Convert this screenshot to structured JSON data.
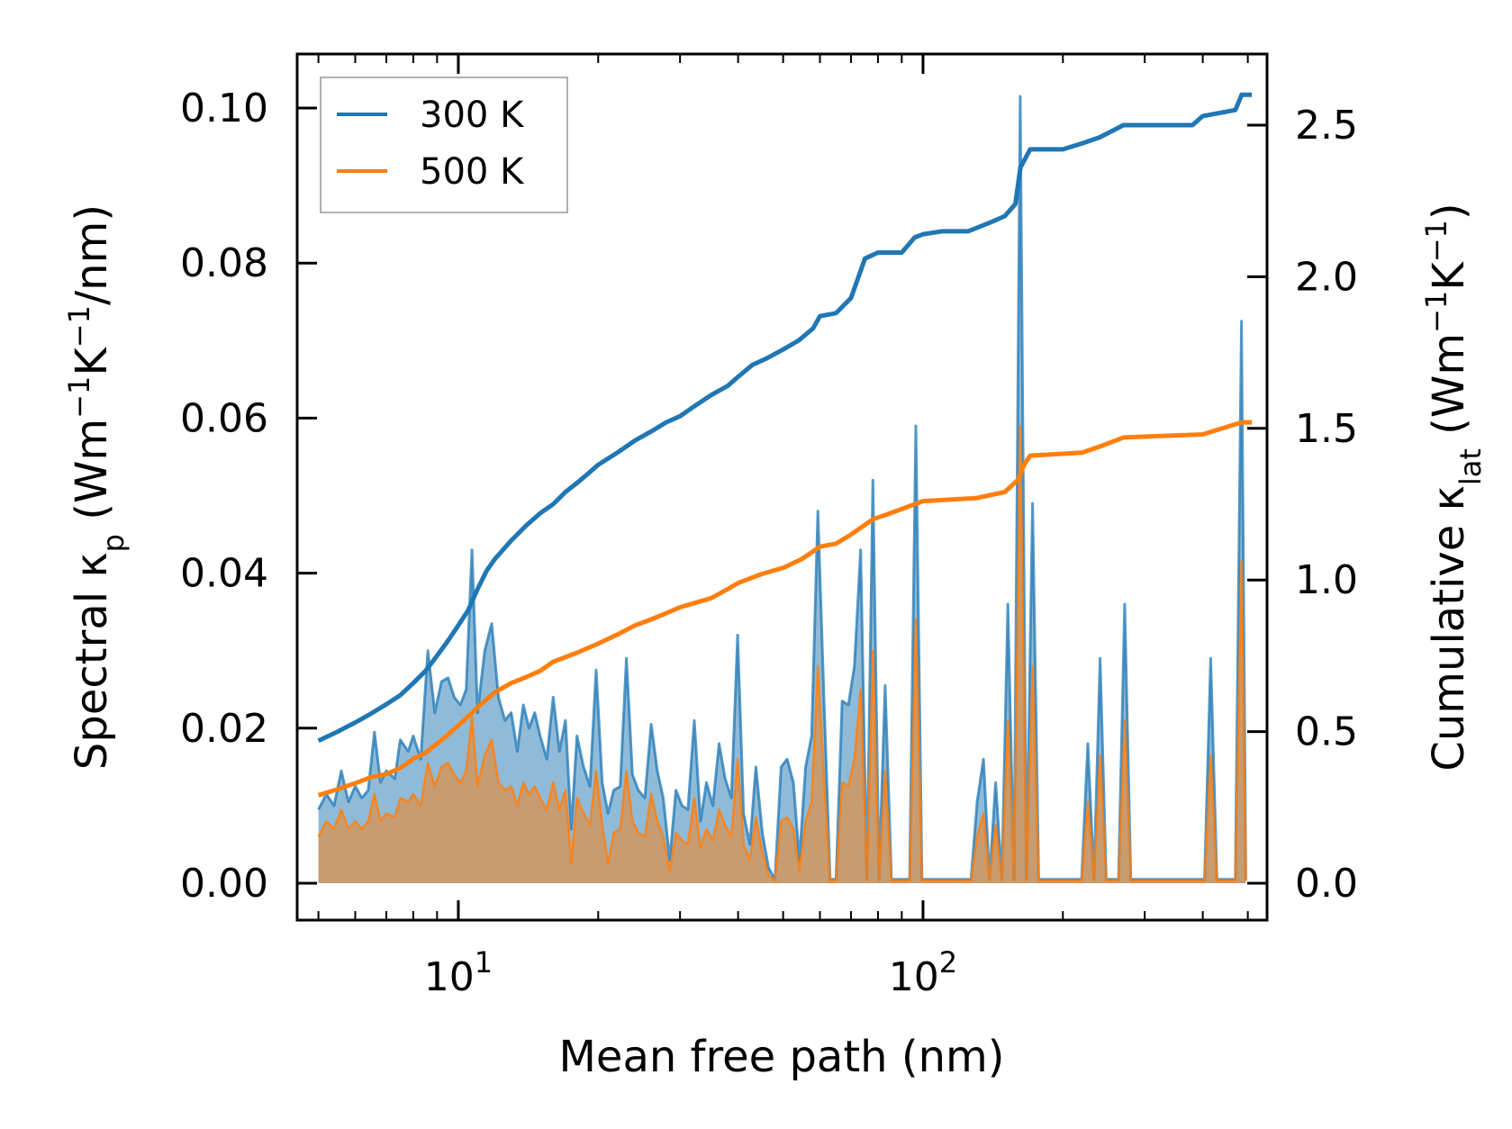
{
  "chart_data": {
    "type": "line",
    "xlabel": "Mean free path (nm)",
    "ylabel_left": {
      "main": "Spectral κ",
      "sub": "p",
      "unit_open": " (Wm",
      "sup1": "−1",
      "mid": "K",
      "sup2": "−1",
      "unit_close": "/nm)"
    },
    "ylabel_right": {
      "main": "Cumulative κ",
      "sub": "lat",
      "unit_open": " (Wm",
      "sup1": "−1",
      "mid": "K",
      "sup2": "−1",
      "unit_close": ")"
    },
    "x_scale": "log",
    "xlim": [
      4.5,
      550
    ],
    "ylim_left": [
      0,
      0.105
    ],
    "ylim_right": [
      0,
      2.7
    ],
    "x_ticks": [
      {
        "value": 10,
        "base": "10",
        "exp": "1"
      },
      {
        "value": 100,
        "base": "10",
        "exp": "2"
      }
    ],
    "y_ticks_left": [
      "0.00",
      "0.02",
      "0.04",
      "0.06",
      "0.08",
      "0.10"
    ],
    "y_ticks_right": [
      "0.0",
      "0.5",
      "1.0",
      "1.5",
      "2.0",
      "2.5"
    ],
    "legend": {
      "position": "top-left",
      "entries": [
        "300 K",
        "500 K"
      ]
    },
    "colors": {
      "300 K": "#1f77b4",
      "500 K": "#ff7f0e",
      "fill_300": "#1f77b4",
      "fill_500": "#d9924e"
    },
    "spectral_300K": [
      [
        5.0,
        0.0095
      ],
      [
        5.2,
        0.0115
      ],
      [
        5.4,
        0.01
      ],
      [
        5.6,
        0.0145
      ],
      [
        5.8,
        0.0105
      ],
      [
        6.0,
        0.0125
      ],
      [
        6.2,
        0.011
      ],
      [
        6.4,
        0.012
      ],
      [
        6.6,
        0.0195
      ],
      [
        6.8,
        0.013
      ],
      [
        7.0,
        0.0145
      ],
      [
        7.3,
        0.0135
      ],
      [
        7.5,
        0.0185
      ],
      [
        7.8,
        0.017
      ],
      [
        8.0,
        0.019
      ],
      [
        8.3,
        0.016
      ],
      [
        8.6,
        0.03
      ],
      [
        8.9,
        0.022
      ],
      [
        9.2,
        0.026
      ],
      [
        9.5,
        0.0265
      ],
      [
        9.8,
        0.024
      ],
      [
        10.1,
        0.023
      ],
      [
        10.4,
        0.025
      ],
      [
        10.7,
        0.043
      ],
      [
        11.0,
        0.022
      ],
      [
        11.4,
        0.03
      ],
      [
        11.8,
        0.0335
      ],
      [
        12.2,
        0.024
      ],
      [
        12.6,
        0.021
      ],
      [
        13.0,
        0.022
      ],
      [
        13.4,
        0.017
      ],
      [
        13.8,
        0.023
      ],
      [
        14.2,
        0.02
      ],
      [
        14.6,
        0.022
      ],
      [
        15.0,
        0.019
      ],
      [
        15.5,
        0.016
      ],
      [
        16.0,
        0.024
      ],
      [
        16.5,
        0.017
      ],
      [
        17.0,
        0.021
      ],
      [
        17.5,
        0.007
      ],
      [
        18.0,
        0.019
      ],
      [
        18.6,
        0.015
      ],
      [
        19.2,
        0.0125
      ],
      [
        19.8,
        0.0275
      ],
      [
        20.4,
        0.013
      ],
      [
        21.0,
        0.009
      ],
      [
        21.6,
        0.012
      ],
      [
        22.3,
        0.0125
      ],
      [
        23.0,
        0.029
      ],
      [
        23.7,
        0.014
      ],
      [
        24.4,
        0.012
      ],
      [
        25.2,
        0.011
      ],
      [
        26.0,
        0.0205
      ],
      [
        26.8,
        0.0145
      ],
      [
        27.6,
        0.011
      ],
      [
        28.5,
        0.003
      ],
      [
        29.4,
        0.012
      ],
      [
        30.3,
        0.01
      ],
      [
        31.2,
        0.0095
      ],
      [
        32.2,
        0.021
      ],
      [
        33.2,
        0.008
      ],
      [
        34.2,
        0.013
      ],
      [
        35.3,
        0.01
      ],
      [
        36.4,
        0.018
      ],
      [
        37.5,
        0.0135
      ],
      [
        38.7,
        0.011
      ],
      [
        39.9,
        0.032
      ],
      [
        41.1,
        0.009
      ],
      [
        42.4,
        0.005
      ],
      [
        43.7,
        0.015
      ],
      [
        45.1,
        0.0065
      ],
      [
        46.5,
        0.002
      ],
      [
        48.0,
        0.0005
      ],
      [
        49.5,
        0.015
      ],
      [
        51.0,
        0.016
      ],
      [
        52.6,
        0.013
      ],
      [
        54.2,
        0.003
      ],
      [
        55.9,
        0.015
      ],
      [
        57.6,
        0.019
      ],
      [
        59.4,
        0.048
      ],
      [
        61.2,
        0.024
      ],
      [
        63.1,
        0.0005
      ],
      [
        65.0,
        0.0005
      ],
      [
        67.0,
        0.0235
      ],
      [
        69.1,
        0.023
      ],
      [
        71.2,
        0.028
      ],
      [
        73.4,
        0.043
      ],
      [
        75.7,
        0.0005
      ],
      [
        78.0,
        0.052
      ],
      [
        80.4,
        0.0005
      ],
      [
        82.9,
        0.0255
      ],
      [
        85.5,
        0.0005
      ],
      [
        88.1,
        0.0005
      ],
      [
        90.8,
        0.0005
      ],
      [
        93.6,
        0.0005
      ],
      [
        96.5,
        0.059
      ],
      [
        99.5,
        0.0005
      ],
      [
        102.6,
        0.0005
      ],
      [
        105.7,
        0.0005
      ],
      [
        109.0,
        0.0005
      ],
      [
        112.4,
        0.0005
      ],
      [
        115.8,
        0.0005
      ],
      [
        119.4,
        0.0005
      ],
      [
        123.1,
        0.0005
      ],
      [
        126.9,
        0.0005
      ],
      [
        130.8,
        0.0105
      ],
      [
        134.9,
        0.016
      ],
      [
        139.0,
        0.0005
      ],
      [
        143.3,
        0.013
      ],
      [
        147.8,
        0.0005
      ],
      [
        152.3,
        0.036
      ],
      [
        157.0,
        0.0005
      ],
      [
        161.9,
        0.1015
      ],
      [
        166.9,
        0.0005
      ],
      [
        172.1,
        0.049
      ],
      [
        177.4,
        0.0005
      ],
      [
        182.9,
        0.0005
      ],
      [
        188.5,
        0.0005
      ],
      [
        194.4,
        0.0005
      ],
      [
        200.3,
        0.0005
      ],
      [
        206.5,
        0.0005
      ],
      [
        212.9,
        0.0005
      ],
      [
        219.5,
        0.0005
      ],
      [
        226.3,
        0.018
      ],
      [
        233.3,
        0.0005
      ],
      [
        240.5,
        0.029
      ],
      [
        247.9,
        0.0005
      ],
      [
        255.6,
        0.0005
      ],
      [
        263.5,
        0.0005
      ],
      [
        271.6,
        0.036
      ],
      [
        280.0,
        0.0005
      ],
      [
        288.7,
        0.0005
      ],
      [
        297.6,
        0.0005
      ],
      [
        306.8,
        0.0005
      ],
      [
        316.3,
        0.0005
      ],
      [
        326.1,
        0.0005
      ],
      [
        336.2,
        0.0005
      ],
      [
        346.6,
        0.0005
      ],
      [
        357.3,
        0.0005
      ],
      [
        368.3,
        0.0005
      ],
      [
        379.7,
        0.0005
      ],
      [
        391.4,
        0.0005
      ],
      [
        403.5,
        0.0005
      ],
      [
        416.0,
        0.029
      ],
      [
        428.9,
        0.0005
      ],
      [
        442.2,
        0.0005
      ],
      [
        455.9,
        0.0005
      ],
      [
        470.0,
        0.0005
      ],
      [
        484.5,
        0.0725
      ],
      [
        495.0,
        0.0005
      ]
    ],
    "spectral_500K": [
      [
        5.0,
        0.006
      ],
      [
        5.2,
        0.008
      ],
      [
        5.4,
        0.007
      ],
      [
        5.6,
        0.0095
      ],
      [
        5.8,
        0.007
      ],
      [
        6.0,
        0.008
      ],
      [
        6.2,
        0.007
      ],
      [
        6.4,
        0.008
      ],
      [
        6.6,
        0.0115
      ],
      [
        6.8,
        0.008
      ],
      [
        7.0,
        0.009
      ],
      [
        7.3,
        0.0085
      ],
      [
        7.5,
        0.011
      ],
      [
        7.8,
        0.0105
      ],
      [
        8.0,
        0.0115
      ],
      [
        8.3,
        0.01
      ],
      [
        8.6,
        0.0155
      ],
      [
        8.9,
        0.0125
      ],
      [
        9.2,
        0.015
      ],
      [
        9.5,
        0.0155
      ],
      [
        9.8,
        0.014
      ],
      [
        10.1,
        0.013
      ],
      [
        10.4,
        0.0145
      ],
      [
        10.7,
        0.0215
      ],
      [
        11.0,
        0.0125
      ],
      [
        11.4,
        0.0165
      ],
      [
        11.8,
        0.0185
      ],
      [
        12.2,
        0.013
      ],
      [
        12.6,
        0.012
      ],
      [
        13.0,
        0.0125
      ],
      [
        13.4,
        0.01
      ],
      [
        13.8,
        0.013
      ],
      [
        14.2,
        0.0115
      ],
      [
        14.6,
        0.0125
      ],
      [
        15.0,
        0.011
      ],
      [
        15.5,
        0.0095
      ],
      [
        16.0,
        0.013
      ],
      [
        16.5,
        0.0095
      ],
      [
        17.0,
        0.012
      ],
      [
        17.5,
        0.0025
      ],
      [
        18.0,
        0.011
      ],
      [
        18.6,
        0.009
      ],
      [
        19.2,
        0.0075
      ],
      [
        19.8,
        0.0145
      ],
      [
        20.4,
        0.0075
      ],
      [
        21.0,
        0.0025
      ],
      [
        21.6,
        0.0065
      ],
      [
        22.3,
        0.007
      ],
      [
        23.0,
        0.0145
      ],
      [
        23.7,
        0.008
      ],
      [
        24.4,
        0.0065
      ],
      [
        25.2,
        0.006
      ],
      [
        26.0,
        0.0115
      ],
      [
        26.8,
        0.008
      ],
      [
        27.6,
        0.006
      ],
      [
        28.5,
        0.0015
      ],
      [
        29.4,
        0.0065
      ],
      [
        30.3,
        0.0055
      ],
      [
        31.2,
        0.005
      ],
      [
        32.2,
        0.011
      ],
      [
        33.2,
        0.0045
      ],
      [
        34.2,
        0.007
      ],
      [
        35.3,
        0.0055
      ],
      [
        36.4,
        0.0095
      ],
      [
        37.5,
        0.0075
      ],
      [
        38.7,
        0.006
      ],
      [
        39.9,
        0.016
      ],
      [
        41.1,
        0.005
      ],
      [
        42.4,
        0.003
      ],
      [
        43.7,
        0.0085
      ],
      [
        45.1,
        0.004
      ],
      [
        46.5,
        0.001
      ],
      [
        48.0,
        0.0003
      ],
      [
        49.5,
        0.008
      ],
      [
        51.0,
        0.0085
      ],
      [
        52.6,
        0.007
      ],
      [
        54.2,
        0.0015
      ],
      [
        55.9,
        0.008
      ],
      [
        57.6,
        0.0105
      ],
      [
        59.4,
        0.028
      ],
      [
        61.2,
        0.0135
      ],
      [
        63.1,
        0.0003
      ],
      [
        65.0,
        0.0003
      ],
      [
        67.0,
        0.013
      ],
      [
        69.1,
        0.0125
      ],
      [
        71.2,
        0.016
      ],
      [
        73.4,
        0.025
      ],
      [
        75.7,
        0.0003
      ],
      [
        78.0,
        0.03
      ],
      [
        80.4,
        0.0003
      ],
      [
        82.9,
        0.0145
      ],
      [
        85.5,
        0.0003
      ],
      [
        88.1,
        0.0003
      ],
      [
        90.8,
        0.0003
      ],
      [
        93.6,
        0.0003
      ],
      [
        96.5,
        0.034
      ],
      [
        99.5,
        0.0003
      ],
      [
        102.6,
        0.0003
      ],
      [
        105.7,
        0.0003
      ],
      [
        109.0,
        0.0003
      ],
      [
        112.4,
        0.0003
      ],
      [
        115.8,
        0.0003
      ],
      [
        119.4,
        0.0003
      ],
      [
        123.1,
        0.0003
      ],
      [
        126.9,
        0.0003
      ],
      [
        130.8,
        0.006
      ],
      [
        134.9,
        0.009
      ],
      [
        139.0,
        0.0003
      ],
      [
        143.3,
        0.0075
      ],
      [
        147.8,
        0.0003
      ],
      [
        152.3,
        0.021
      ],
      [
        157.0,
        0.0003
      ],
      [
        161.9,
        0.059
      ],
      [
        166.9,
        0.0003
      ],
      [
        172.1,
        0.028
      ],
      [
        177.4,
        0.0003
      ],
      [
        182.9,
        0.0003
      ],
      [
        188.5,
        0.0003
      ],
      [
        194.4,
        0.0003
      ],
      [
        200.3,
        0.0003
      ],
      [
        206.5,
        0.0003
      ],
      [
        212.9,
        0.0003
      ],
      [
        219.5,
        0.0003
      ],
      [
        226.3,
        0.0105
      ],
      [
        233.3,
        0.0003
      ],
      [
        240.5,
        0.0165
      ],
      [
        247.9,
        0.0003
      ],
      [
        255.6,
        0.0003
      ],
      [
        263.5,
        0.0003
      ],
      [
        271.6,
        0.021
      ],
      [
        280.0,
        0.0003
      ],
      [
        288.7,
        0.0003
      ],
      [
        297.6,
        0.0003
      ],
      [
        306.8,
        0.0003
      ],
      [
        316.3,
        0.0003
      ],
      [
        326.1,
        0.0003
      ],
      [
        336.2,
        0.0003
      ],
      [
        346.6,
        0.0003
      ],
      [
        357.3,
        0.0003
      ],
      [
        368.3,
        0.0003
      ],
      [
        379.7,
        0.0003
      ],
      [
        391.4,
        0.0003
      ],
      [
        403.5,
        0.0003
      ],
      [
        416.0,
        0.0165
      ],
      [
        428.9,
        0.0003
      ],
      [
        442.2,
        0.0003
      ],
      [
        455.9,
        0.0003
      ],
      [
        470.0,
        0.0003
      ],
      [
        484.5,
        0.0415
      ],
      [
        495.0,
        0.0003
      ]
    ],
    "cumulative_300K": [
      [
        5.0,
        0.47
      ],
      [
        5.5,
        0.5
      ],
      [
        6.0,
        0.53
      ],
      [
        6.5,
        0.56
      ],
      [
        7.0,
        0.59
      ],
      [
        7.5,
        0.62
      ],
      [
        8.0,
        0.66
      ],
      [
        8.5,
        0.7
      ],
      [
        9.0,
        0.75
      ],
      [
        9.5,
        0.8
      ],
      [
        10.0,
        0.85
      ],
      [
        10.5,
        0.9
      ],
      [
        11.0,
        0.97
      ],
      [
        11.5,
        1.03
      ],
      [
        12.0,
        1.07
      ],
      [
        13.0,
        1.13
      ],
      [
        14.0,
        1.18
      ],
      [
        15.0,
        1.22
      ],
      [
        16.0,
        1.25
      ],
      [
        17.0,
        1.29
      ],
      [
        18.0,
        1.32
      ],
      [
        19.0,
        1.35
      ],
      [
        20.0,
        1.38
      ],
      [
        22.0,
        1.42
      ],
      [
        24.0,
        1.46
      ],
      [
        26.0,
        1.49
      ],
      [
        28.0,
        1.52
      ],
      [
        30.0,
        1.54
      ],
      [
        32.0,
        1.57
      ],
      [
        35.0,
        1.61
      ],
      [
        38.0,
        1.64
      ],
      [
        40.0,
        1.67
      ],
      [
        43.0,
        1.71
      ],
      [
        46.0,
        1.73
      ],
      [
        50.0,
        1.76
      ],
      [
        54.0,
        1.79
      ],
      [
        58.0,
        1.83
      ],
      [
        60.0,
        1.87
      ],
      [
        65.0,
        1.88
      ],
      [
        70.0,
        1.93
      ],
      [
        75.0,
        2.06
      ],
      [
        80.0,
        2.08
      ],
      [
        90.0,
        2.08
      ],
      [
        96.0,
        2.13
      ],
      [
        100.0,
        2.14
      ],
      [
        110.0,
        2.15
      ],
      [
        125.0,
        2.15
      ],
      [
        140.0,
        2.18
      ],
      [
        150.0,
        2.2
      ],
      [
        158.0,
        2.24
      ],
      [
        162.0,
        2.36
      ],
      [
        170.0,
        2.42
      ],
      [
        200.0,
        2.42
      ],
      [
        220.0,
        2.44
      ],
      [
        240.0,
        2.46
      ],
      [
        270.0,
        2.5
      ],
      [
        320.0,
        2.5
      ],
      [
        380.0,
        2.5
      ],
      [
        400.0,
        2.53
      ],
      [
        470.0,
        2.55
      ],
      [
        485.0,
        2.6
      ],
      [
        510.0,
        2.6
      ]
    ],
    "cumulative_500K": [
      [
        5.0,
        0.29
      ],
      [
        5.5,
        0.31
      ],
      [
        6.0,
        0.33
      ],
      [
        6.5,
        0.35
      ],
      [
        7.0,
        0.36
      ],
      [
        7.5,
        0.38
      ],
      [
        8.0,
        0.41
      ],
      [
        8.5,
        0.43
      ],
      [
        9.0,
        0.46
      ],
      [
        9.5,
        0.49
      ],
      [
        10.0,
        0.52
      ],
      [
        10.5,
        0.55
      ],
      [
        11.0,
        0.58
      ],
      [
        12.0,
        0.63
      ],
      [
        13.0,
        0.66
      ],
      [
        14.0,
        0.68
      ],
      [
        15.0,
        0.7
      ],
      [
        16.0,
        0.73
      ],
      [
        18.0,
        0.76
      ],
      [
        20.0,
        0.79
      ],
      [
        22.0,
        0.82
      ],
      [
        24.0,
        0.85
      ],
      [
        26.0,
        0.87
      ],
      [
        28.0,
        0.89
      ],
      [
        30.0,
        0.91
      ],
      [
        35.0,
        0.94
      ],
      [
        38.0,
        0.97
      ],
      [
        40.0,
        0.99
      ],
      [
        45.0,
        1.02
      ],
      [
        50.0,
        1.04
      ],
      [
        55.0,
        1.07
      ],
      [
        60.0,
        1.11
      ],
      [
        65.0,
        1.12
      ],
      [
        70.0,
        1.15
      ],
      [
        78.0,
        1.2
      ],
      [
        85.0,
        1.22
      ],
      [
        96.0,
        1.25
      ],
      [
        100.0,
        1.26
      ],
      [
        130.0,
        1.27
      ],
      [
        150.0,
        1.29
      ],
      [
        160.0,
        1.33
      ],
      [
        165.0,
        1.38
      ],
      [
        170.0,
        1.41
      ],
      [
        220.0,
        1.42
      ],
      [
        240.0,
        1.44
      ],
      [
        270.0,
        1.47
      ],
      [
        400.0,
        1.48
      ],
      [
        485.0,
        1.52
      ],
      [
        510.0,
        1.52
      ]
    ]
  }
}
